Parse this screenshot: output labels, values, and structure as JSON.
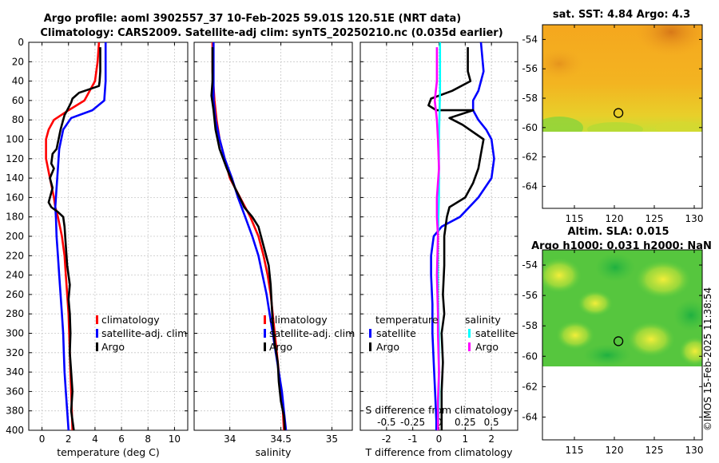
{
  "title_line1": "Argo profile: aoml 3902557_37 10-Feb-2025 59.01S 120.51E (NRT data)",
  "title_line2": "Climatology: CARS2009. Satellite-adj clim: synTS_20250210.nc (0.035d earlier)",
  "credit": "©IMOS 15-Feb-2025 11:38:54",
  "colors": {
    "climatology": "#ff0000",
    "satellite": "#0000ff",
    "argo": "#000000",
    "salinity_sat": "#00ffff",
    "salinity_argo": "#ff00ff",
    "grid": "#c8c8c8",
    "zero_line": "#b05030"
  },
  "chart_data": [
    {
      "type": "line",
      "panel": "temperature",
      "xlabel": "temperature (deg C)",
      "xlim": [
        -1,
        11
      ],
      "xticks": [
        0,
        2,
        4,
        6,
        8,
        10
      ],
      "ylim": [
        0,
        400
      ],
      "yticks": [
        0,
        20,
        40,
        60,
        80,
        100,
        120,
        140,
        160,
        180,
        200,
        220,
        240,
        260,
        280,
        300,
        320,
        340,
        360,
        380,
        400
      ],
      "legend": [
        "climatology",
        "satellite-adj. clim",
        "Argo"
      ],
      "series": [
        {
          "name": "climatology",
          "color": "#ff0000",
          "points": [
            [
              4.3,
              0
            ],
            [
              4.2,
              20
            ],
            [
              4.0,
              40
            ],
            [
              3.2,
              60
            ],
            [
              2.0,
              70
            ],
            [
              0.9,
              80
            ],
            [
              0.5,
              90
            ],
            [
              0.3,
              100
            ],
            [
              0.3,
              120
            ],
            [
              0.6,
              140
            ],
            [
              0.9,
              160
            ],
            [
              1.0,
              170
            ],
            [
              1.2,
              180
            ],
            [
              1.5,
              200
            ],
            [
              1.7,
              220
            ],
            [
              1.8,
              240
            ],
            [
              1.9,
              260
            ],
            [
              2.0,
              280
            ],
            [
              2.05,
              300
            ],
            [
              2.1,
              320
            ],
            [
              2.15,
              340
            ],
            [
              2.2,
              360
            ],
            [
              2.25,
              380
            ],
            [
              2.3,
              400
            ]
          ]
        },
        {
          "name": "satellite-adj. clim",
          "color": "#0000ff",
          "points": [
            [
              4.8,
              0
            ],
            [
              4.8,
              20
            ],
            [
              4.8,
              40
            ],
            [
              4.7,
              60
            ],
            [
              3.8,
              70
            ],
            [
              2.2,
              78
            ],
            [
              1.6,
              90
            ],
            [
              1.3,
              110
            ],
            [
              1.2,
              130
            ],
            [
              1.1,
              150
            ],
            [
              1.0,
              170
            ],
            [
              1.05,
              180
            ],
            [
              1.1,
              200
            ],
            [
              1.2,
              220
            ],
            [
              1.3,
              240
            ],
            [
              1.4,
              260
            ],
            [
              1.5,
              280
            ],
            [
              1.6,
              300
            ],
            [
              1.65,
              320
            ],
            [
              1.7,
              340
            ],
            [
              1.8,
              360
            ],
            [
              1.9,
              380
            ],
            [
              2.0,
              400
            ]
          ]
        },
        {
          "name": "Argo",
          "color": "#000000",
          "points": [
            [
              4.4,
              5
            ],
            [
              4.4,
              30
            ],
            [
              4.35,
              40
            ],
            [
              4.3,
              45
            ],
            [
              2.8,
              52
            ],
            [
              2.3,
              58
            ],
            [
              2.2,
              62
            ],
            [
              1.9,
              70
            ],
            [
              1.7,
              75
            ],
            [
              1.6,
              80
            ],
            [
              1.4,
              90
            ],
            [
              1.1,
              110
            ],
            [
              0.8,
              115
            ],
            [
              0.7,
              125
            ],
            [
              0.9,
              130
            ],
            [
              0.6,
              140
            ],
            [
              0.8,
              150
            ],
            [
              0.5,
              165
            ],
            [
              0.7,
              170
            ],
            [
              1.2,
              175
            ],
            [
              1.6,
              180
            ],
            [
              1.7,
              190
            ],
            [
              1.8,
              210
            ],
            [
              1.9,
              230
            ],
            [
              2.1,
              250
            ],
            [
              2.0,
              265
            ],
            [
              2.1,
              280
            ],
            [
              2.15,
              300
            ],
            [
              2.1,
              320
            ],
            [
              2.2,
              340
            ],
            [
              2.3,
              360
            ],
            [
              2.2,
              380
            ],
            [
              2.4,
              400
            ]
          ]
        }
      ]
    },
    {
      "type": "line",
      "panel": "salinity",
      "xlabel": "salinity",
      "xlim": [
        33.65,
        35.2
      ],
      "xticks": [
        34,
        34.5,
        35
      ],
      "xticklabels": [
        "34",
        "34.5",
        "35"
      ],
      "ylim": [
        0,
        400
      ],
      "legend": [
        "climatology",
        "satellite-adj. clim",
        "Argo"
      ],
      "series": [
        {
          "name": "climatology",
          "color": "#ff0000",
          "points": [
            [
              33.83,
              0
            ],
            [
              33.83,
              30
            ],
            [
              33.85,
              60
            ],
            [
              33.87,
              80
            ],
            [
              33.9,
              100
            ],
            [
              33.95,
              120
            ],
            [
              34.0,
              140
            ],
            [
              34.1,
              160
            ],
            [
              34.2,
              180
            ],
            [
              34.28,
              200
            ],
            [
              34.33,
              220
            ],
            [
              34.37,
              240
            ],
            [
              34.4,
              260
            ],
            [
              34.42,
              280
            ],
            [
              34.44,
              300
            ],
            [
              34.46,
              320
            ],
            [
              34.48,
              340
            ],
            [
              34.5,
              360
            ],
            [
              34.52,
              380
            ],
            [
              34.53,
              400
            ]
          ]
        },
        {
          "name": "satellite-adj. clim",
          "color": "#0000ff",
          "points": [
            [
              33.84,
              0
            ],
            [
              33.84,
              30
            ],
            [
              33.84,
              60
            ],
            [
              33.86,
              80
            ],
            [
              33.9,
              100
            ],
            [
              33.95,
              120
            ],
            [
              34.02,
              140
            ],
            [
              34.08,
              160
            ],
            [
              34.15,
              180
            ],
            [
              34.22,
              200
            ],
            [
              34.28,
              220
            ],
            [
              34.32,
              240
            ],
            [
              34.36,
              260
            ],
            [
              34.39,
              280
            ],
            [
              34.42,
              300
            ],
            [
              34.45,
              320
            ],
            [
              34.48,
              340
            ],
            [
              34.51,
              360
            ],
            [
              34.53,
              380
            ],
            [
              34.55,
              400
            ]
          ]
        },
        {
          "name": "Argo",
          "color": "#000000",
          "points": [
            [
              33.83,
              5
            ],
            [
              33.83,
              40
            ],
            [
              33.82,
              55
            ],
            [
              33.84,
              70
            ],
            [
              33.86,
              90
            ],
            [
              33.9,
              110
            ],
            [
              33.97,
              130
            ],
            [
              34.05,
              150
            ],
            [
              34.12,
              165
            ],
            [
              34.14,
              170
            ],
            [
              34.22,
              180
            ],
            [
              34.28,
              190
            ],
            [
              34.33,
              210
            ],
            [
              34.38,
              230
            ],
            [
              34.4,
              250
            ],
            [
              34.41,
              270
            ],
            [
              34.42,
              290
            ],
            [
              34.44,
              310
            ],
            [
              34.47,
              330
            ],
            [
              34.48,
              350
            ],
            [
              34.5,
              370
            ],
            [
              34.53,
              385
            ],
            [
              34.54,
              400
            ]
          ]
        }
      ]
    },
    {
      "type": "line",
      "panel": "difference",
      "xlabel": "T difference from climatology",
      "xlabel_top": "S difference from climatology",
      "xlim": [
        -3,
        3
      ],
      "xticks": [
        -2,
        -1,
        0,
        1,
        2
      ],
      "xticklabels": [
        "-2",
        "-1",
        "0",
        "1",
        "2"
      ],
      "xlim_s": [
        -0.75,
        0.75
      ],
      "xticks_s": [
        -0.5,
        -0.25,
        0,
        0.25,
        0.5
      ],
      "xticklabels_s": [
        "-0.5",
        "-0.25",
        "0",
        "0.25",
        "0.5"
      ],
      "ylim": [
        0,
        400
      ],
      "legend_titles": [
        "temperature",
        "salinity"
      ],
      "legend": [
        "satellite",
        "Argo",
        "satellite",
        "Argo"
      ],
      "series": [
        {
          "name": "T satellite",
          "color": "#0000ff",
          "points": [
            [
              1.6,
              0
            ],
            [
              1.7,
              30
            ],
            [
              1.5,
              50
            ],
            [
              1.3,
              60
            ],
            [
              1.3,
              70
            ],
            [
              1.5,
              80
            ],
            [
              1.8,
              90
            ],
            [
              2.0,
              100
            ],
            [
              2.1,
              120
            ],
            [
              2.0,
              140
            ],
            [
              1.5,
              160
            ],
            [
              0.8,
              180
            ],
            [
              0.1,
              190
            ],
            [
              -0.2,
              200
            ],
            [
              -0.3,
              220
            ],
            [
              -0.3,
              240
            ],
            [
              -0.25,
              270
            ],
            [
              -0.25,
              300
            ],
            [
              -0.2,
              330
            ],
            [
              -0.15,
              360
            ],
            [
              -0.1,
              390
            ],
            [
              -0.1,
              400
            ]
          ]
        },
        {
          "name": "T Argo",
          "color": "#000000",
          "points": [
            [
              1.1,
              5
            ],
            [
              1.1,
              30
            ],
            [
              1.2,
              40
            ],
            [
              0.5,
              50
            ],
            [
              -0.3,
              58
            ],
            [
              -0.4,
              65
            ],
            [
              -0.1,
              70
            ],
            [
              1.3,
              70
            ],
            [
              0.4,
              78
            ],
            [
              0.9,
              85
            ],
            [
              1.7,
              100
            ],
            [
              1.6,
              115
            ],
            [
              1.5,
              130
            ],
            [
              1.3,
              145
            ],
            [
              1.0,
              160
            ],
            [
              0.4,
              170
            ],
            [
              0.3,
              180
            ],
            [
              0.2,
              200
            ],
            [
              0.2,
              230
            ],
            [
              0.15,
              260
            ],
            [
              0.2,
              280
            ],
            [
              0.1,
              300
            ],
            [
              0.15,
              330
            ],
            [
              0.1,
              360
            ],
            [
              0.1,
              390
            ],
            [
              0.1,
              400
            ]
          ]
        },
        {
          "name": "S satellite",
          "color": "#00ffff",
          "points": [
            [
              0.01,
              0
            ],
            [
              0.01,
              50
            ],
            [
              0.0,
              100
            ],
            [
              0.0,
              160
            ],
            [
              -0.01,
              200
            ],
            [
              -0.01,
              260
            ],
            [
              0.0,
              300
            ],
            [
              0.0,
              360
            ],
            [
              -0.01,
              400
            ]
          ]
        },
        {
          "name": "S Argo",
          "color": "#ff00ff",
          "points": [
            [
              -0.02,
              5
            ],
            [
              -0.02,
              40
            ],
            [
              -0.04,
              60
            ],
            [
              -0.02,
              80
            ],
            [
              -0.01,
              100
            ],
            [
              0.0,
              130
            ],
            [
              -0.02,
              160
            ],
            [
              -0.02,
              180
            ],
            [
              -0.01,
              200
            ],
            [
              -0.02,
              240
            ],
            [
              -0.01,
              280
            ],
            [
              -0.01,
              300
            ],
            [
              0.0,
              340
            ],
            [
              -0.01,
              370
            ],
            [
              -0.01,
              400
            ]
          ]
        }
      ]
    },
    {
      "type": "heatmap",
      "panel": "sst_map",
      "title": "sat. SST: 4.84 Argo: 4.3",
      "xlim": [
        111,
        131
      ],
      "ylim": [
        -65.5,
        -53
      ],
      "xticks": [
        115,
        120,
        125,
        130
      ],
      "yticks": [
        -54,
        -56,
        -58,
        -60,
        -62,
        -64
      ],
      "marker": [
        120.51,
        -59.01
      ],
      "data_extent_y": [
        -60,
        -53
      ]
    },
    {
      "type": "heatmap",
      "panel": "sla_map",
      "title_line1": "Altim. SLA: 0.015",
      "title_line2": "Argo h1000: 0.031 h2000: NaN",
      "xlim": [
        111,
        131
      ],
      "ylim": [
        -65.5,
        -53
      ],
      "xticks": [
        115,
        120,
        125,
        130
      ],
      "yticks": [
        -54,
        -56,
        -58,
        -60,
        -62,
        -64
      ],
      "marker": [
        120.51,
        -59.01
      ],
      "data_extent_y": [
        -60,
        -53
      ]
    }
  ]
}
